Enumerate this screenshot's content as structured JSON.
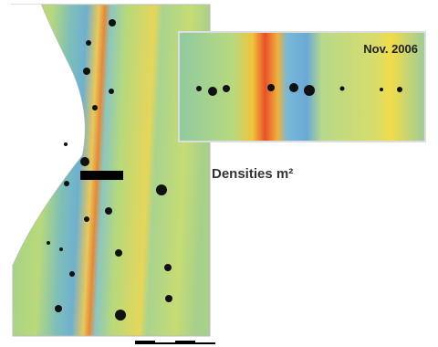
{
  "inset": {
    "label": "Nov. 2006"
  },
  "legend": {
    "title": "Densities m²"
  }
}
